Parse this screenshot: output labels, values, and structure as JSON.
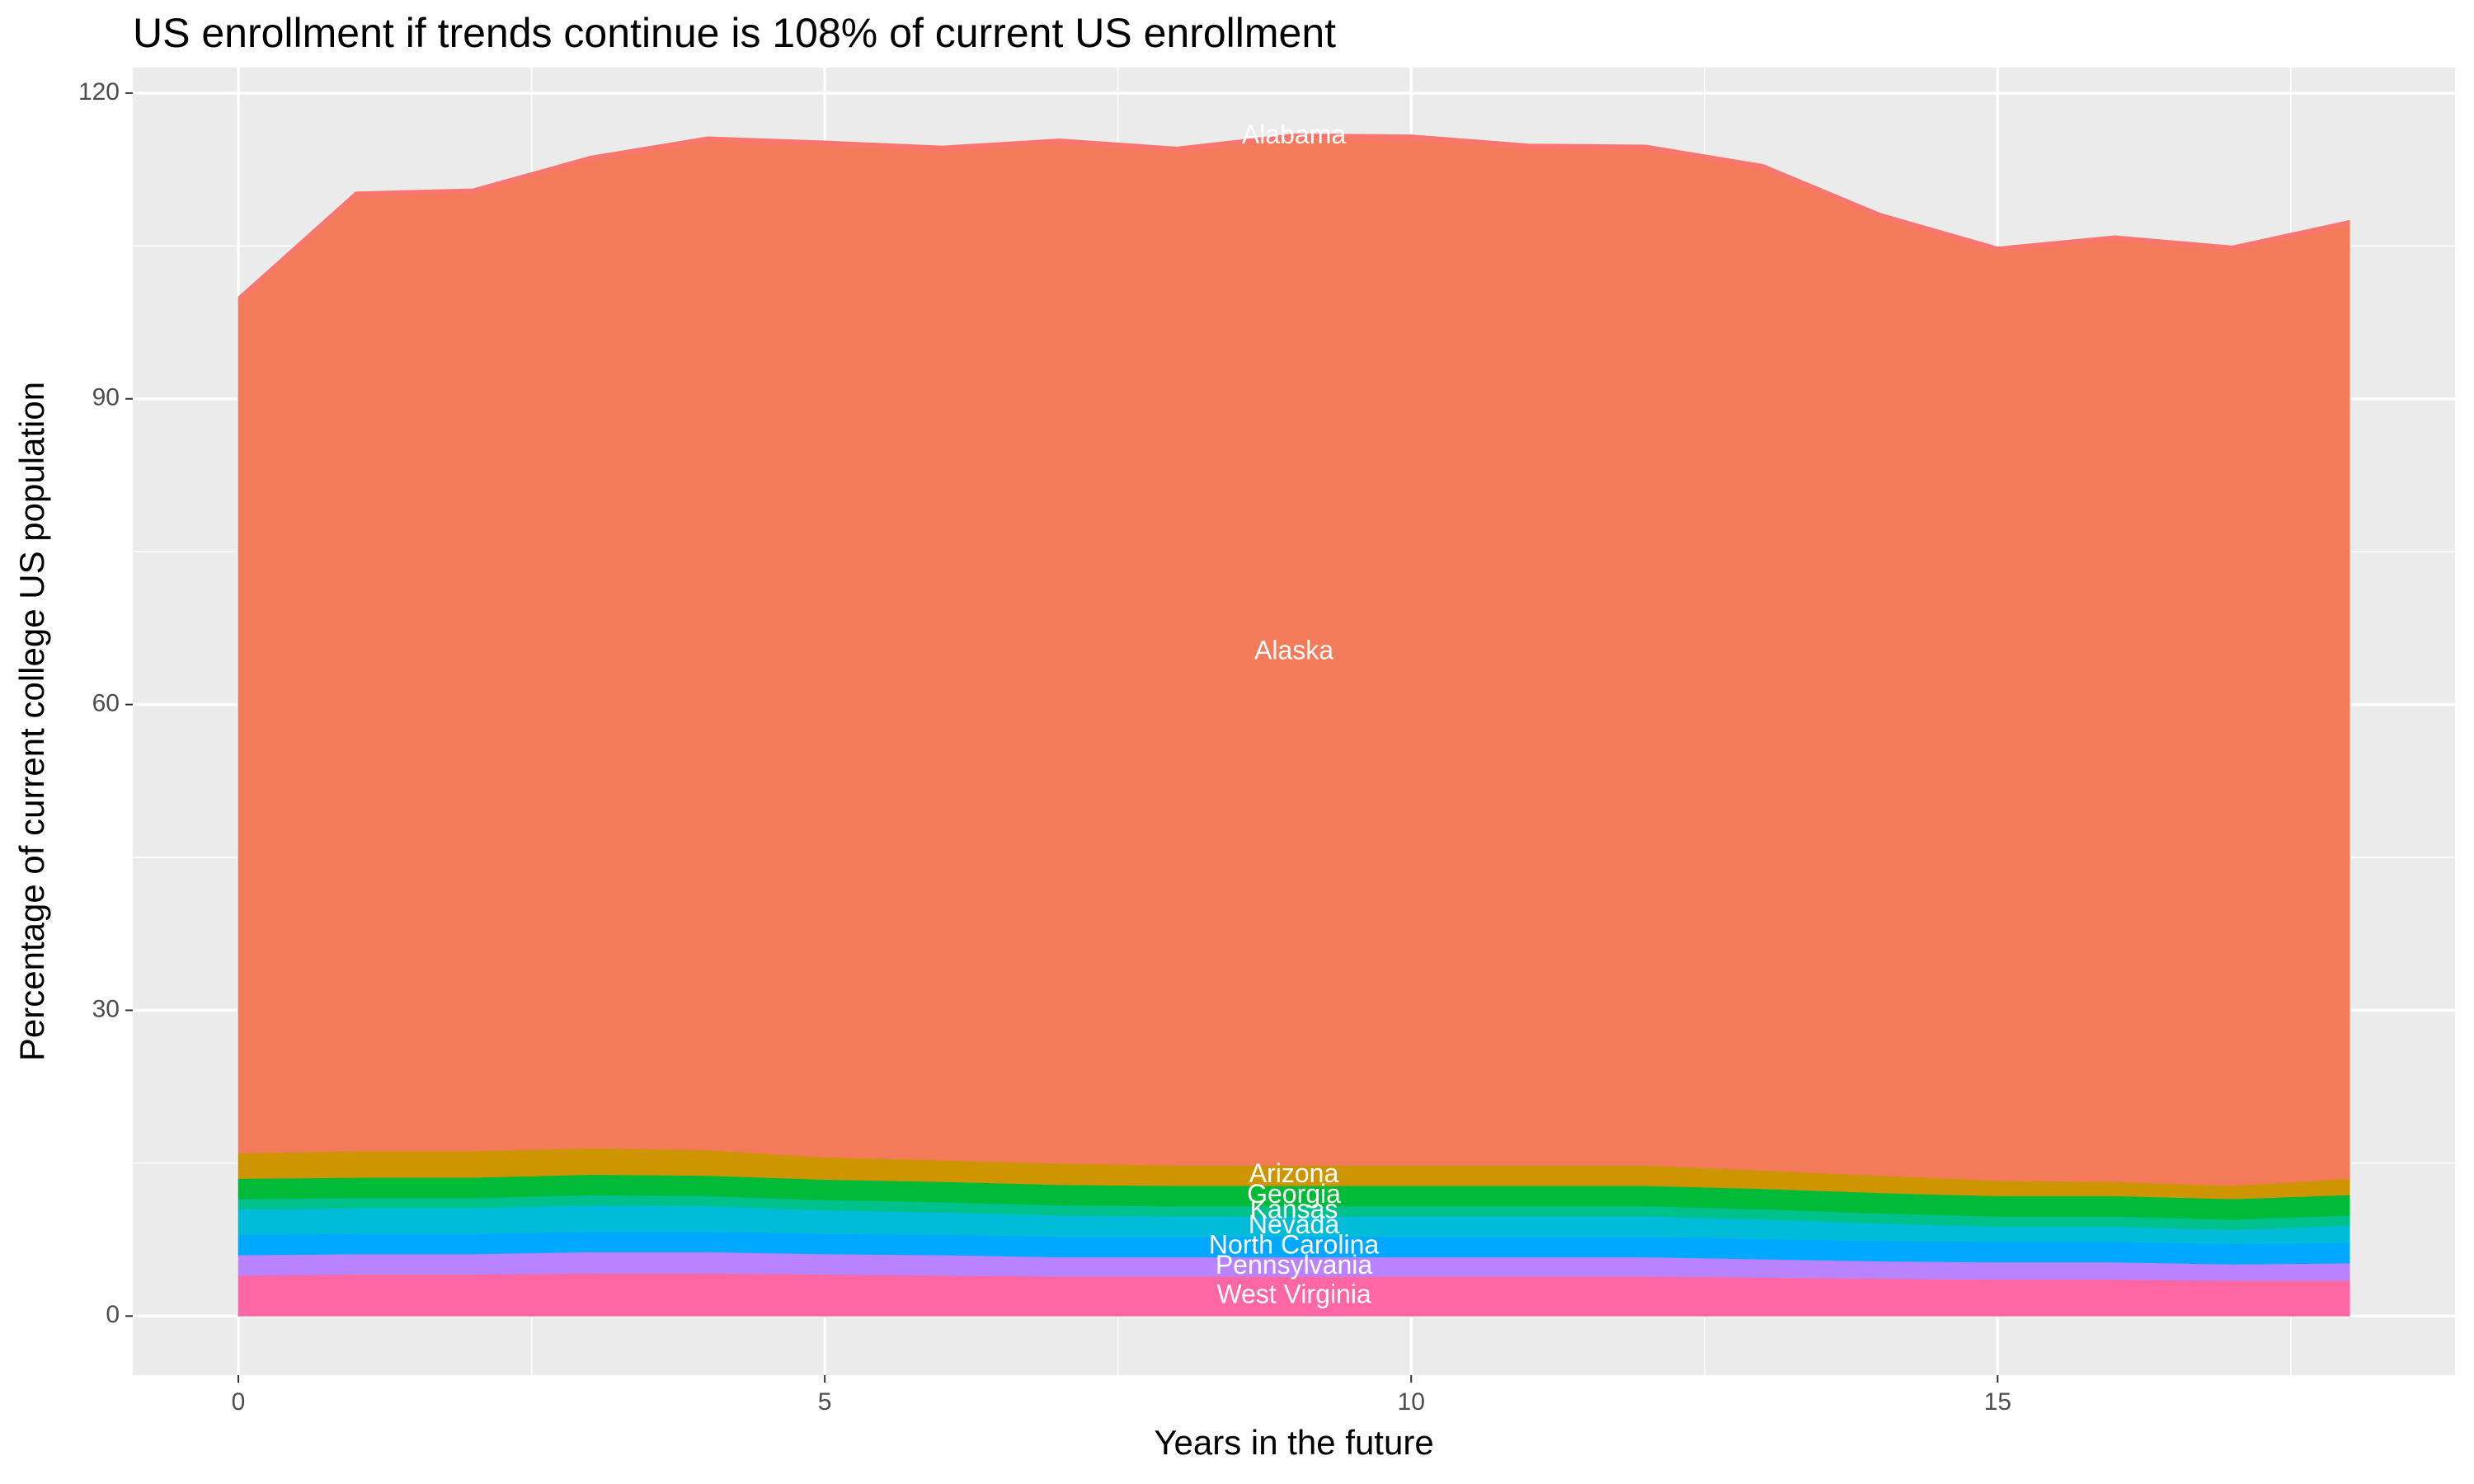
{
  "chart_data": {
    "type": "stacked_area",
    "title": "US enrollment if trends continue is 108% of current US enrollment",
    "x_label": "Years in the future",
    "y_label": "Percentage of current college US population",
    "x": [
      0,
      1,
      2,
      3,
      4,
      5,
      6,
      7,
      8,
      9,
      10,
      11,
      12,
      13,
      14,
      15,
      16,
      17,
      18
    ],
    "series": [
      {
        "name": "West Virginia",
        "color": "#FF67A4",
        "values": [
          4,
          4.1,
          4.1,
          4.2,
          4.2,
          4.1,
          4,
          3.9,
          3.9,
          3.9,
          3.9,
          3.9,
          3.9,
          3.8,
          3.7,
          3.6,
          3.6,
          3.5,
          3.5
        ]
      },
      {
        "name": "Pennsylvania",
        "color": "#B983FF",
        "values": [
          2,
          2,
          2,
          2.1,
          2.1,
          2,
          2,
          1.9,
          1.9,
          1.9,
          1.9,
          1.9,
          1.9,
          1.8,
          1.7,
          1.7,
          1.7,
          1.6,
          1.7
        ]
      },
      {
        "name": "North Carolina",
        "color": "#00A9FF",
        "values": [
          2,
          2,
          2,
          2,
          2,
          2,
          2,
          2,
          2,
          2,
          2,
          2,
          2,
          2,
          2,
          2,
          2,
          2,
          2
        ]
      },
      {
        "name": "Nevada",
        "color": "#00BCD8",
        "values": [
          2.5,
          2.5,
          2.5,
          2.6,
          2.5,
          2.3,
          2.2,
          2.1,
          2,
          2,
          2,
          2,
          2,
          1.9,
          1.7,
          1.5,
          1.5,
          1.4,
          1.7
        ]
      },
      {
        "name": "Kansas",
        "color": "#00C08B",
        "values": [
          1,
          1,
          1,
          1,
          1,
          1,
          1,
          1,
          1,
          1,
          1,
          1,
          1,
          1,
          1,
          1,
          1,
          1,
          1
        ]
      },
      {
        "name": "Georgia",
        "color": "#00BA38",
        "values": [
          2,
          2,
          2,
          2,
          2,
          2,
          2,
          2,
          2,
          2,
          2,
          2,
          2,
          2,
          2,
          2,
          2,
          2,
          2
        ]
      },
      {
        "name": "Arizona",
        "color": "#CD9600",
        "values": [
          2.5,
          2.6,
          2.6,
          2.6,
          2.5,
          2.2,
          2.1,
          2.1,
          2,
          2,
          2,
          2,
          2,
          1.8,
          1.7,
          1.5,
          1.4,
          1.3,
          1.6
        ]
      },
      {
        "name": "Alaska",
        "color": "#F37B59",
        "values": [
          83.5,
          93.6,
          93.9,
          96.8,
          98.9,
          99.2,
          99,
          100,
          99.4,
          100.7,
          100.6,
          99.7,
          99.6,
          98.2,
          93.9,
          91.1,
          92.3,
          91.7,
          93.5
        ]
      },
      {
        "name": "Alabama",
        "color": "#F8766D",
        "values": [
          0.5,
          0.5,
          0.5,
          0.5,
          0.5,
          0.5,
          0.5,
          0.5,
          0.5,
          0.5,
          0.5,
          0.5,
          0.5,
          0.5,
          0.5,
          0.5,
          0.5,
          0.5,
          0.5
        ]
      }
    ],
    "xlim": [
      -0.9,
      18.9
    ],
    "ylim": [
      -5.8,
      122.5
    ],
    "xticks": [
      0,
      5,
      10,
      15
    ],
    "yticks": [
      0,
      30,
      60,
      90,
      120
    ],
    "xminorticks": [
      2.5,
      7.5,
      12.5,
      17.5
    ],
    "yminorticks": [
      15,
      45,
      75,
      105
    ],
    "grid": true
  }
}
